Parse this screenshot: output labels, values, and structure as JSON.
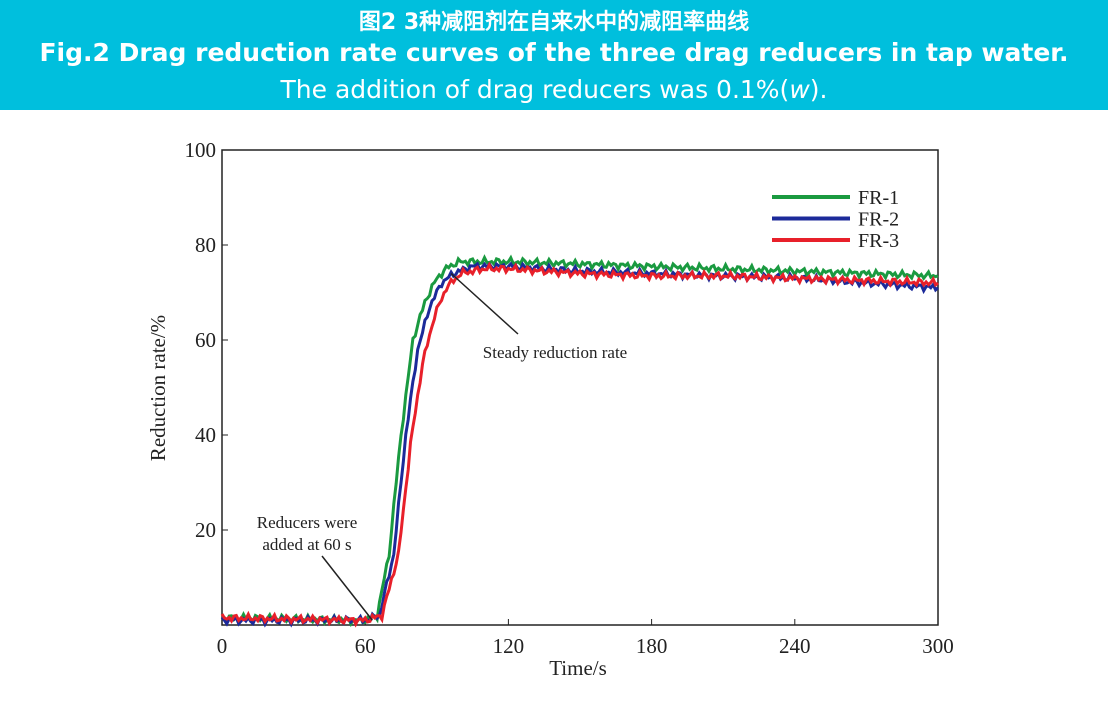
{
  "header": {
    "title_cn": "图2 3种减阻剂在自来水中的减阻率曲线",
    "title_en": "Fig.2 Drag reduction rate curves of the three drag reducers in tap water.",
    "subtitle_prefix": "The addition of drag reducers was 0.1%(",
    "subtitle_var": "w",
    "subtitle_suffix": ")."
  },
  "chart_data": {
    "type": "line",
    "xlabel": "Time/s",
    "ylabel": "Reduction rate/%",
    "xlim": [
      0,
      300
    ],
    "ylim": [
      0,
      100
    ],
    "xticks": [
      0,
      60,
      120,
      180,
      240,
      300
    ],
    "yticks": [
      20,
      40,
      60,
      80,
      100
    ],
    "grid": false,
    "legend_position": "top-right",
    "annotations": [
      {
        "lines": [
          "Reducers were",
          "added at 60 s"
        ],
        "points_to": [
          63,
          1
        ]
      },
      {
        "lines": [
          "Steady reduction rate"
        ],
        "points_to": [
          96,
          74
        ]
      }
    ],
    "series": [
      {
        "name": "FR-1",
        "color": "#1a9a40",
        "x": [
          0,
          60,
          65,
          70,
          75,
          80,
          85,
          90,
          95,
          100,
          120,
          150,
          180,
          210,
          240,
          270,
          300
        ],
        "y": [
          1.5,
          1,
          2,
          15,
          40,
          60,
          68,
          73,
          75.5,
          76.5,
          76.5,
          76,
          75.5,
          75,
          74.5,
          74,
          73.5
        ]
      },
      {
        "name": "FR-2",
        "color": "#1c2a9a",
        "x": [
          0,
          60,
          66,
          72,
          77,
          82,
          87,
          92,
          97,
          105,
          120,
          150,
          180,
          210,
          240,
          270,
          300
        ],
        "y": [
          1,
          1,
          2,
          15,
          40,
          58,
          67,
          72,
          74,
          75.5,
          75.5,
          74.5,
          74,
          73.5,
          73,
          72,
          71
        ]
      },
      {
        "name": "FR-3",
        "color": "#e8202a",
        "x": [
          0,
          60,
          67,
          74,
          79,
          84,
          89,
          94,
          100,
          110,
          120,
          150,
          180,
          210,
          240,
          270,
          300
        ],
        "y": [
          1.5,
          1,
          2,
          15,
          38,
          55,
          65,
          71,
          74,
          75,
          75,
          74,
          73.5,
          73.5,
          73,
          72.5,
          72
        ]
      }
    ]
  }
}
